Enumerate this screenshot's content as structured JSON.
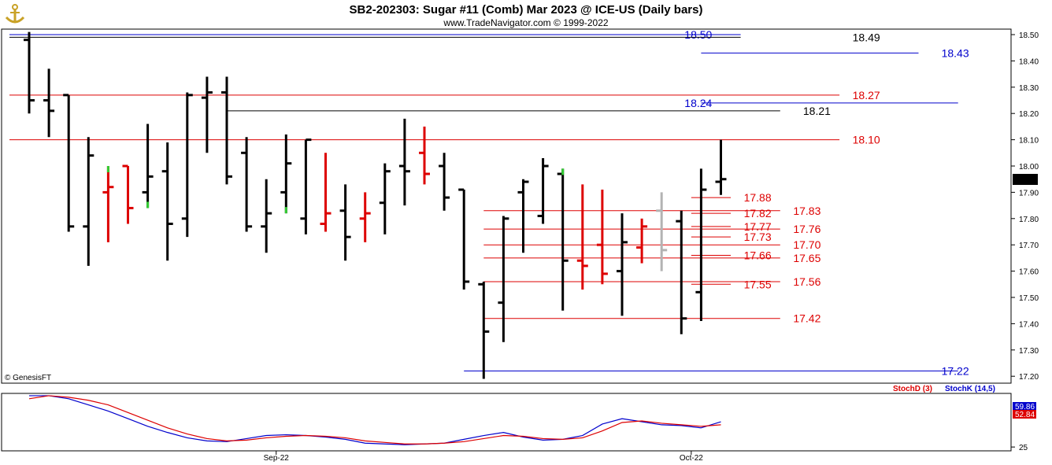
{
  "header": {
    "title": "SB2-202303:  Sugar #11 (Comb) Mar 2023 @ ICE-US  (Daily bars)",
    "subtitle": "www.TradeNavigator.com © 1999-2022",
    "copyright": "© GenesisFT"
  },
  "logo": {
    "icon": "gold-anchor-icon"
  },
  "colors": {
    "up": "#000000",
    "down": "#dd0000",
    "green": "#33cc33",
    "gray": "#b3b3b3",
    "blue": "#0000cc",
    "red": "#dd0000",
    "black": "#000000"
  },
  "chart_data": [
    {
      "type": "ohlc",
      "ylim": [
        17.18,
        18.53
      ],
      "yticks": [
        "18.50",
        "18.40",
        "18.30",
        "18.20",
        "18.10",
        "18.00",
        "17.90",
        "17.80",
        "17.70",
        "17.60",
        "17.50",
        "17.40",
        "17.30",
        "17.20"
      ],
      "current_price": "17.95",
      "xlabels": [
        {
          "bar": 12.5,
          "label": "Sep-22"
        },
        {
          "bar": 33.5,
          "label": "Oct-22"
        }
      ],
      "bars": [
        {
          "o": 18.48,
          "h": 18.51,
          "l": 18.2,
          "c": 18.25,
          "color": "black",
          "mark": "none"
        },
        {
          "o": 18.25,
          "h": 18.37,
          "l": 18.11,
          "c": 18.21,
          "color": "black",
          "mark": "none"
        },
        {
          "o": 18.27,
          "h": 18.27,
          "l": 17.75,
          "c": 17.77,
          "color": "black",
          "mark": "none"
        },
        {
          "o": 17.77,
          "h": 18.11,
          "l": 17.62,
          "c": 18.04,
          "color": "black",
          "mark": "none"
        },
        {
          "o": 17.9,
          "h": 18.0,
          "l": 17.71,
          "c": 17.92,
          "color": "red",
          "mark": "top"
        },
        {
          "o": 18.0,
          "h": 18.0,
          "l": 17.78,
          "c": 17.84,
          "color": "red",
          "mark": "none"
        },
        {
          "o": 17.9,
          "h": 18.16,
          "l": 17.84,
          "c": 17.96,
          "color": "black",
          "mark": "bottom"
        },
        {
          "o": 17.98,
          "h": 18.09,
          "l": 17.64,
          "c": 17.78,
          "color": "black",
          "mark": "none"
        },
        {
          "o": 17.8,
          "h": 18.28,
          "l": 17.73,
          "c": 18.27,
          "color": "black",
          "mark": "none"
        },
        {
          "o": 18.26,
          "h": 18.34,
          "l": 18.05,
          "c": 18.28,
          "color": "black",
          "mark": "none"
        },
        {
          "o": 18.28,
          "h": 18.34,
          "l": 17.93,
          "c": 17.96,
          "color": "black",
          "mark": "none"
        },
        {
          "o": 18.05,
          "h": 18.11,
          "l": 17.75,
          "c": 17.77,
          "color": "black",
          "mark": "none"
        },
        {
          "o": 17.77,
          "h": 17.95,
          "l": 17.67,
          "c": 17.82,
          "color": "black",
          "mark": "none"
        },
        {
          "o": 17.9,
          "h": 18.12,
          "l": 17.82,
          "c": 18.01,
          "color": "black",
          "mark": "bottom"
        },
        {
          "o": 17.8,
          "h": 18.1,
          "l": 17.74,
          "c": 18.1,
          "color": "black",
          "mark": "none"
        },
        {
          "o": 17.78,
          "h": 18.05,
          "l": 17.75,
          "c": 17.82,
          "color": "red",
          "mark": "none"
        },
        {
          "o": 17.83,
          "h": 17.93,
          "l": 17.64,
          "c": 17.73,
          "color": "black",
          "mark": "none"
        },
        {
          "o": 17.8,
          "h": 17.9,
          "l": 17.71,
          "c": 17.82,
          "color": "red",
          "mark": "none"
        },
        {
          "o": 17.86,
          "h": 18.01,
          "l": 17.74,
          "c": 17.98,
          "color": "black",
          "mark": "none"
        },
        {
          "o": 18.0,
          "h": 18.18,
          "l": 17.85,
          "c": 17.98,
          "color": "black",
          "mark": "none"
        },
        {
          "o": 18.05,
          "h": 18.15,
          "l": 17.93,
          "c": 17.97,
          "color": "red",
          "mark": "none"
        },
        {
          "o": 18.0,
          "h": 18.05,
          "l": 17.83,
          "c": 17.88,
          "color": "black",
          "mark": "none"
        },
        {
          "o": 17.91,
          "h": 17.91,
          "l": 17.53,
          "c": 17.56,
          "color": "black",
          "mark": "none"
        },
        {
          "o": 17.55,
          "h": 17.56,
          "l": 17.19,
          "c": 17.37,
          "color": "black",
          "mark": "none"
        },
        {
          "o": 17.48,
          "h": 17.81,
          "l": 17.33,
          "c": 17.8,
          "color": "black",
          "mark": "none"
        },
        {
          "o": 17.9,
          "h": 17.95,
          "l": 17.67,
          "c": 17.94,
          "color": "black",
          "mark": "none"
        },
        {
          "o": 17.81,
          "h": 18.03,
          "l": 17.78,
          "c": 18.0,
          "color": "black",
          "mark": "none"
        },
        {
          "o": 17.97,
          "h": 17.99,
          "l": 17.45,
          "c": 17.64,
          "color": "black",
          "mark": "top"
        },
        {
          "o": 17.64,
          "h": 17.93,
          "l": 17.53,
          "c": 17.62,
          "color": "red",
          "mark": "none"
        },
        {
          "o": 17.7,
          "h": 17.91,
          "l": 17.55,
          "c": 17.59,
          "color": "red",
          "mark": "none"
        },
        {
          "o": 17.6,
          "h": 17.82,
          "l": 17.43,
          "c": 17.71,
          "color": "black",
          "mark": "none"
        },
        {
          "o": 17.69,
          "h": 17.8,
          "l": 17.63,
          "c": 17.77,
          "color": "red",
          "mark": "none"
        },
        {
          "o": 17.83,
          "h": 17.9,
          "l": 17.6,
          "c": 17.68,
          "color": "gray",
          "mark": "none"
        },
        {
          "o": 17.79,
          "h": 17.83,
          "l": 17.36,
          "c": 17.42,
          "color": "black",
          "mark": "none"
        },
        {
          "o": 17.52,
          "h": 17.99,
          "l": 17.41,
          "c": 17.91,
          "color": "black",
          "mark": "none"
        },
        {
          "o": 17.94,
          "h": 18.1,
          "l": 17.89,
          "c": 17.95,
          "color": "black",
          "mark": "none"
        }
      ],
      "levels": [
        {
          "price": 18.5,
          "label": "18.50",
          "color": "blue",
          "from": -1,
          "to": 36,
          "label_at": 33,
          "label_side": "left"
        },
        {
          "price": 18.49,
          "label": "18.49",
          "color": "black",
          "from": -1,
          "to": 36,
          "label_at": 41.5,
          "label_side": "left"
        },
        {
          "price": 18.43,
          "label": "18.43",
          "color": "blue",
          "from": 34,
          "to": 45,
          "label_at": 46,
          "label_side": "left"
        },
        {
          "price": 18.27,
          "label": "18.27",
          "color": "red",
          "from": -1,
          "to": 41,
          "label_at": 41.5,
          "label_side": "left"
        },
        {
          "price": 18.24,
          "label": "18.24",
          "color": "blue",
          "from": 34,
          "to": 47,
          "label_at": 33,
          "label_side": "left"
        },
        {
          "price": 18.21,
          "label": "18.21",
          "color": "black",
          "from": 10,
          "to": 38,
          "label_at": 39,
          "label_side": "left"
        },
        {
          "price": 18.1,
          "label": "18.10",
          "color": "red",
          "from": -1,
          "to": 41,
          "label_at": 41.5,
          "label_side": "left"
        },
        {
          "price": 17.88,
          "label": "17.88",
          "color": "red",
          "from": 33.5,
          "to": 35.5,
          "label_at": 36,
          "label_side": "left"
        },
        {
          "price": 17.83,
          "label": "17.83",
          "color": "red",
          "from": 23,
          "to": 38,
          "label_at": 38.5,
          "label_side": "left"
        },
        {
          "price": 17.82,
          "label": "17.82",
          "color": "red",
          "from": 33.5,
          "to": 35.5,
          "label_at": 36,
          "label_side": "left"
        },
        {
          "price": 17.77,
          "label": "17.77",
          "color": "red",
          "from": 33.5,
          "to": 35.5,
          "label_at": 36,
          "label_side": "left"
        },
        {
          "price": 17.76,
          "label": "17.76",
          "color": "red",
          "from": 23,
          "to": 38,
          "label_at": 38.5,
          "label_side": "left"
        },
        {
          "price": 17.73,
          "label": "17.73",
          "color": "red",
          "from": 33.5,
          "to": 35.5,
          "label_at": 36,
          "label_side": "left"
        },
        {
          "price": 17.7,
          "label": "17.70",
          "color": "red",
          "from": 23,
          "to": 38,
          "label_at": 38.5,
          "label_side": "left"
        },
        {
          "price": 17.66,
          "label": "17.66",
          "color": "red",
          "from": 33.5,
          "to": 35.5,
          "label_at": 36,
          "label_side": "left"
        },
        {
          "price": 17.65,
          "label": "17.65",
          "color": "red",
          "from": 23,
          "to": 38,
          "label_at": 38.5,
          "label_side": "left"
        },
        {
          "price": 17.56,
          "label": "17.56",
          "color": "red",
          "from": 23,
          "to": 38,
          "label_at": 38.5,
          "label_side": "left"
        },
        {
          "price": 17.55,
          "label": "17.55",
          "color": "red",
          "from": 33.5,
          "to": 35.5,
          "label_at": 36,
          "label_side": "left"
        },
        {
          "price": 17.42,
          "label": "17.42",
          "color": "red",
          "from": 23,
          "to": 38,
          "label_at": 38.5,
          "label_side": "left"
        },
        {
          "price": 17.22,
          "label": "17.22",
          "color": "blue",
          "from": 22,
          "to": 47,
          "label_at": 46,
          "label_side": "left"
        }
      ]
    },
    {
      "type": "line",
      "name": "stochastic",
      "ylim": [
        20,
        95
      ],
      "yticks": [
        "25"
      ],
      "legend": [
        {
          "name": "StochD (3)",
          "color": "red"
        },
        {
          "name": "StochK (14,5)",
          "color": "blue"
        }
      ],
      "series": [
        {
          "name": "StochK (14,5)",
          "color": "blue",
          "last_label": "59.86",
          "values": [
            92,
            92,
            88,
            80,
            72,
            62,
            52,
            44,
            37,
            33,
            32,
            36,
            40,
            41,
            40,
            38,
            35,
            30,
            29,
            28,
            29,
            30,
            35,
            40,
            44,
            38,
            34,
            35,
            40,
            55,
            62,
            58,
            54,
            53,
            50,
            58
          ]
        },
        {
          "name": "StochD (3)",
          "color": "red",
          "last_label": "52.84",
          "values": [
            88,
            92,
            90,
            86,
            80,
            70,
            60,
            50,
            42,
            36,
            33,
            34,
            37,
            39,
            40,
            39,
            37,
            33,
            31,
            29,
            29,
            30,
            32,
            36,
            40,
            39,
            36,
            35,
            37,
            46,
            57,
            59,
            56,
            54,
            52,
            54
          ]
        }
      ]
    }
  ]
}
